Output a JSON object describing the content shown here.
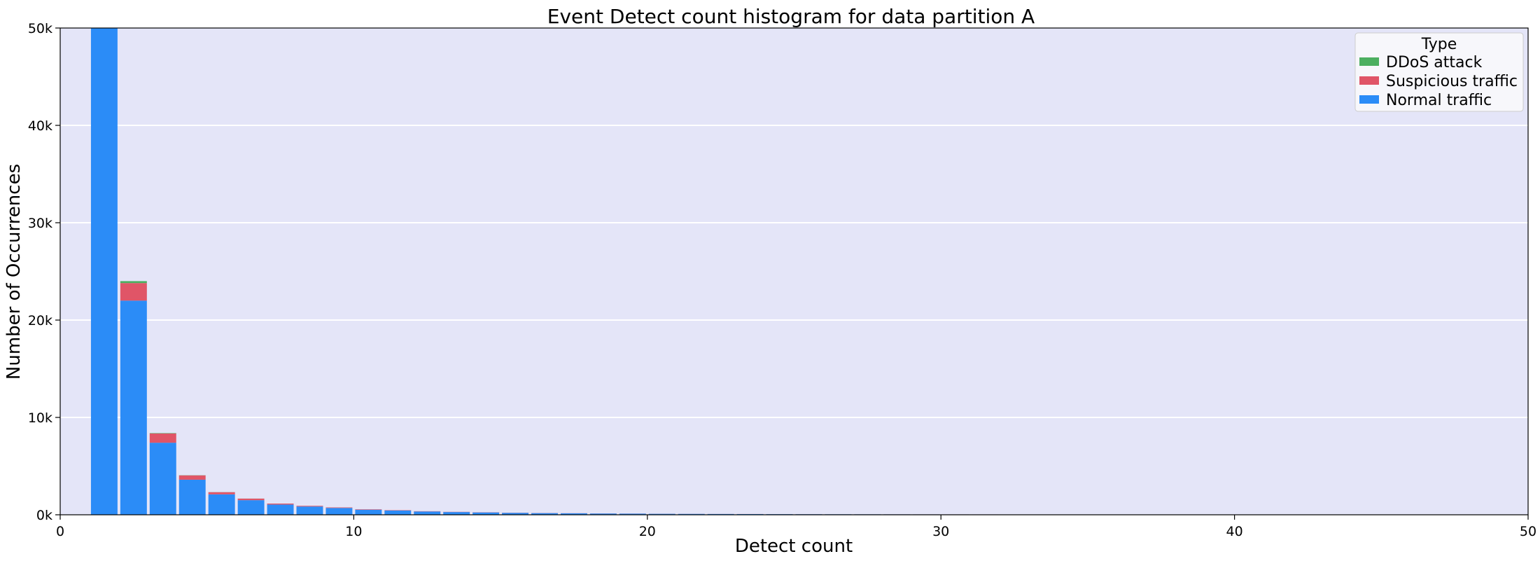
{
  "chart_data": {
    "type": "bar",
    "stacked": true,
    "title": "Event Detect count histogram for data partition A",
    "xlabel": "Detect count",
    "ylabel": "Number of Occurrences",
    "xlim": [
      0,
      50
    ],
    "ylim": [
      0,
      50000
    ],
    "xticks": [
      0,
      10,
      20,
      30,
      40,
      50
    ],
    "xtick_labels": [
      "0",
      "10",
      "20",
      "30",
      "40",
      "50"
    ],
    "yticks": [
      0,
      10000,
      20000,
      30000,
      40000,
      50000
    ],
    "ytick_labels": [
      "0k",
      "10k",
      "20k",
      "30k",
      "40k",
      "50k"
    ],
    "grid": "horizontal",
    "background_color": "#e4e5f8",
    "legend": {
      "title": "Type",
      "position": "top-right",
      "entries": [
        "DDoS attack",
        "Suspicious traffic",
        "Normal traffic"
      ]
    },
    "bins": [
      1,
      2,
      3,
      4,
      5,
      6,
      7,
      8,
      9,
      10,
      11,
      12,
      13,
      14,
      15,
      16,
      17,
      18,
      19,
      20,
      21,
      22,
      23,
      24,
      25,
      26,
      27,
      28,
      29,
      30,
      31,
      32,
      33,
      34,
      35,
      36,
      37,
      38,
      39,
      40,
      41,
      42,
      43,
      44,
      45,
      46,
      47,
      48,
      49
    ],
    "bin_width": 1,
    "series": [
      {
        "name": "Normal traffic",
        "color": "#2b8cf7",
        "values": [
          50000,
          22000,
          7400,
          3600,
          2100,
          1500,
          1050,
          850,
          700,
          520,
          440,
          340,
          280,
          240,
          200,
          170,
          150,
          130,
          115,
          100,
          90,
          80,
          72,
          65,
          58,
          52,
          48,
          44,
          40,
          37,
          34,
          31,
          29,
          27,
          25,
          23,
          22,
          20,
          19,
          18,
          17,
          16,
          15,
          14,
          13,
          12,
          11,
          10,
          9
        ]
      },
      {
        "name": "Suspicious traffic",
        "color": "#e05567",
        "values": [
          0,
          1800,
          950,
          450,
          220,
          160,
          100,
          70,
          55,
          45,
          35,
          28,
          22,
          18,
          15,
          12,
          10,
          9,
          8,
          7,
          6,
          5,
          5,
          4,
          4,
          3,
          3,
          3,
          2,
          2,
          2,
          2,
          2,
          2,
          1,
          1,
          1,
          1,
          1,
          1,
          1,
          1,
          1,
          1,
          1,
          1,
          1,
          1,
          1
        ]
      },
      {
        "name": "DDoS attack",
        "color": "#4caf60",
        "values": [
          0,
          200,
          40,
          15,
          8,
          5,
          3,
          2,
          2,
          1,
          1,
          1,
          1,
          1,
          1,
          1,
          1,
          1,
          1,
          1,
          1,
          1,
          1,
          1,
          1,
          1,
          1,
          1,
          1,
          1,
          1,
          1,
          1,
          1,
          1,
          1,
          1,
          1,
          1,
          1,
          1,
          1,
          1,
          1,
          1,
          1,
          1,
          1,
          1
        ]
      }
    ]
  }
}
